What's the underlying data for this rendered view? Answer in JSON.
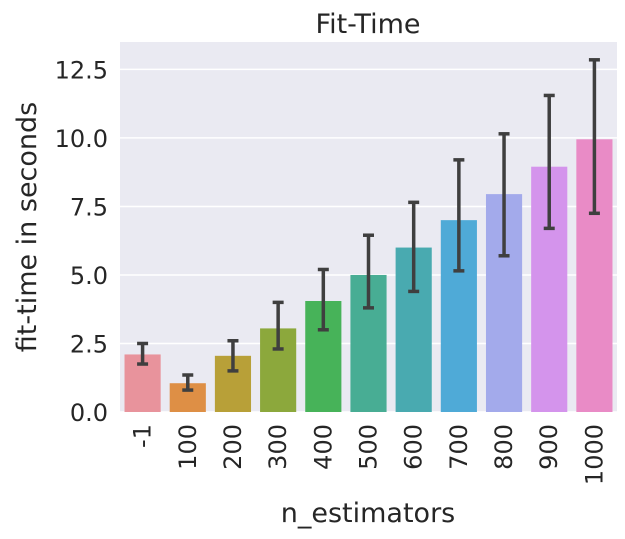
{
  "chart_data": {
    "type": "bar",
    "title": "Fit-Time",
    "xlabel": "n_estimators",
    "ylabel": "fit-time in seconds",
    "categories": [
      "-1",
      "100",
      "200",
      "300",
      "400",
      "500",
      "600",
      "700",
      "800",
      "900",
      "1000"
    ],
    "values": [
      2.1,
      1.05,
      2.05,
      3.05,
      4.05,
      5.0,
      6.0,
      7.0,
      7.95,
      8.95,
      9.95
    ],
    "error_low": [
      1.75,
      0.8,
      1.5,
      2.3,
      3.0,
      3.8,
      4.4,
      5.15,
      5.7,
      6.7,
      7.25
    ],
    "error_high": [
      2.5,
      1.35,
      2.6,
      4.0,
      5.2,
      6.45,
      7.65,
      9.2,
      10.15,
      11.55,
      12.85
    ],
    "ylim": [
      0,
      13.5
    ],
    "yticks": [
      0.0,
      2.5,
      5.0,
      7.5,
      10.0,
      12.5
    ],
    "ytick_labels": [
      "0.0",
      "2.5",
      "5.0",
      "7.5",
      "10.0",
      "12.5"
    ],
    "grid": true,
    "colors": [
      "#e8939c",
      "#de8f45",
      "#b8a038",
      "#8ca83c",
      "#47b359",
      "#48ad94",
      "#49aab0",
      "#4faad7",
      "#a3aaeb",
      "#d494ec",
      "#e98bc6"
    ],
    "plot_background": "#eaeaf2",
    "error_bar_color": "#3f3f3f"
  }
}
